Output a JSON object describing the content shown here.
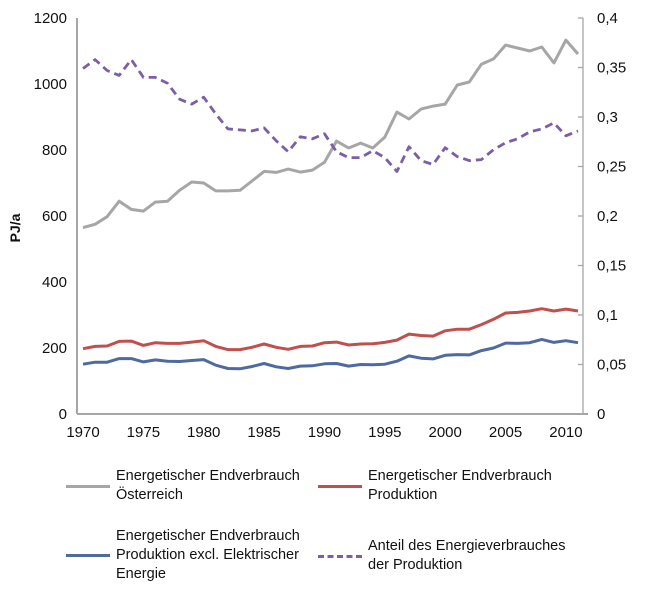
{
  "chart_data": {
    "type": "line",
    "title": "",
    "xlabel": "",
    "ylabel": "PJ/a",
    "y2label": "",
    "xlim": [
      1970,
      2011
    ],
    "ylim": [
      0,
      1200
    ],
    "y2lim": [
      0,
      0.4
    ],
    "grid": false,
    "legend_position": "bottom",
    "x_ticks": [
      "1970",
      "1975",
      "1980",
      "1985",
      "1990",
      "1995",
      "2000",
      "2005",
      "2010"
    ],
    "y_ticks": [
      "0",
      "200",
      "400",
      "600",
      "800",
      "1000",
      "1200"
    ],
    "y2_ticks": [
      "0",
      "0,05",
      "0,1",
      "0,15",
      "0,2",
      "0,25",
      "0,3",
      "0,35",
      "0,4"
    ],
    "x": [
      1970,
      1971,
      1972,
      1973,
      1974,
      1975,
      1976,
      1977,
      1978,
      1979,
      1980,
      1981,
      1982,
      1983,
      1984,
      1985,
      1986,
      1987,
      1988,
      1989,
      1990,
      1991,
      1992,
      1993,
      1994,
      1995,
      1996,
      1997,
      1998,
      1999,
      2000,
      2001,
      2002,
      2003,
      2004,
      2005,
      2006,
      2007,
      2008,
      2009,
      2010,
      2011
    ],
    "series": [
      {
        "name": "Energetischer Endverbrauch Österreich",
        "axis": "left",
        "color": "#a6a6a6",
        "dashed": false,
        "values": [
          565,
          575,
          598,
          645,
          620,
          615,
          642,
          645,
          678,
          703,
          700,
          676,
          676,
          678,
          706,
          735,
          732,
          742,
          733,
          739,
          763,
          827,
          806,
          821,
          806,
          839,
          915,
          894,
          924,
          933,
          939,
          997,
          1006,
          1060,
          1076,
          1118,
          1109,
          1100,
          1112,
          1064,
          1133,
          1091
        ]
      },
      {
        "name": "Energetischer Endverbrauch Produktion",
        "axis": "left",
        "color": "#c0504d",
        "dashed": false,
        "values": [
          198,
          205,
          206,
          220,
          221,
          208,
          216,
          214,
          214,
          218,
          222,
          205,
          195,
          195,
          202,
          212,
          202,
          196,
          205,
          206,
          216,
          218,
          209,
          212,
          213,
          217,
          224,
          242,
          238,
          236,
          252,
          257,
          257,
          271,
          287,
          306,
          308,
          312,
          319,
          312,
          318,
          312
        ]
      },
      {
        "name": "Energetischer Endverbrauch Produktion excl. Elektrischer Energie",
        "axis": "left",
        "color": "#4f6aa0",
        "dashed": false,
        "values": [
          151,
          157,
          157,
          168,
          168,
          158,
          164,
          160,
          159,
          162,
          165,
          148,
          138,
          137,
          144,
          153,
          143,
          138,
          145,
          146,
          152,
          153,
          145,
          150,
          149,
          151,
          160,
          176,
          169,
          167,
          178,
          180,
          179,
          192,
          200,
          215,
          214,
          216,
          226,
          217,
          222,
          216
        ]
      },
      {
        "name": "Anteil des Energieverbrauches der Produktion",
        "axis": "right",
        "color": "#7b5ea7",
        "dashed": true,
        "values": [
          0.349,
          0.358,
          0.347,
          0.342,
          0.358,
          0.34,
          0.34,
          0.334,
          0.318,
          0.313,
          0.32,
          0.303,
          0.288,
          0.287,
          0.286,
          0.289,
          0.276,
          0.265,
          0.28,
          0.278,
          0.283,
          0.265,
          0.259,
          0.259,
          0.266,
          0.259,
          0.245,
          0.27,
          0.256,
          0.252,
          0.269,
          0.26,
          0.256,
          0.257,
          0.267,
          0.274,
          0.278,
          0.285,
          0.288,
          0.294,
          0.281,
          0.286
        ]
      }
    ]
  },
  "legend": [
    {
      "label": "Energetischer Endverbrauch\nÖsterreich",
      "color": "#a6a6a6",
      "dashed": false
    },
    {
      "label": "Energetischer Endverbrauch\nProduktion",
      "color": "#c0504d",
      "dashed": false
    },
    {
      "label": "Energetischer Endverbrauch\nProduktion excl. Elektrischer\nEnergie",
      "color": "#4f6aa0",
      "dashed": false
    },
    {
      "label": "Anteil des Energieverbrauches\nder Produktion",
      "color": "#7b5ea7",
      "dashed": true
    }
  ],
  "axis_color": "#a6a6a6"
}
